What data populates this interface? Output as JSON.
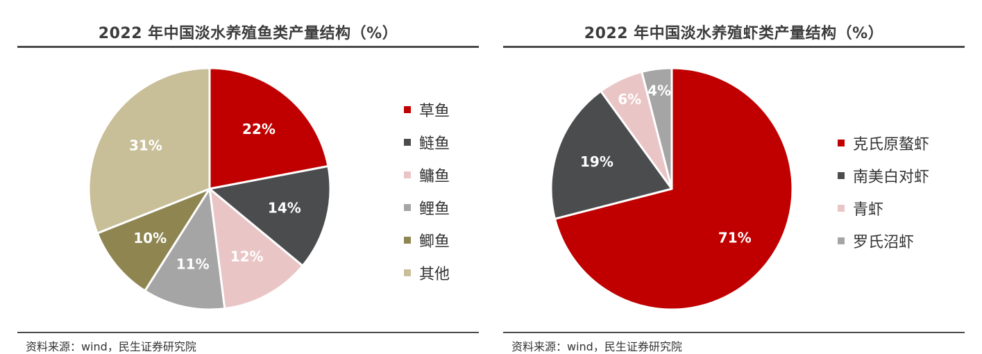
{
  "chart_data": [
    {
      "type": "pie",
      "title": "2022 年中国淡水养殖鱼类产量结构（%）",
      "source": "资料来源：wind，民生证券研究院",
      "slices": [
        {
          "label": "草鱼",
          "value": 22,
          "display": "22%",
          "color": "#c00000",
          "label_color": "#ffffff"
        },
        {
          "label": "鲢鱼",
          "value": 14,
          "display": "14%",
          "color": "#4b4c4e",
          "label_color": "#ffffff"
        },
        {
          "label": "鳙鱼",
          "value": 12,
          "display": "12%",
          "color": "#eac5c6",
          "label_color": "#ffffff"
        },
        {
          "label": "鲤鱼",
          "value": 11,
          "display": "11%",
          "color": "#a5a5a5",
          "label_color": "#ffffff"
        },
        {
          "label": "鲫鱼",
          "value": 10,
          "display": "10%",
          "color": "#8e8551",
          "label_color": "#ffffff"
        },
        {
          "label": "其他",
          "value": 31,
          "display": "31%",
          "color": "#c8bf98",
          "label_color": "#ffffff"
        }
      ],
      "legend_position": "right"
    },
    {
      "type": "pie",
      "title": "2022 年中国淡水养殖虾类产量结构（%）",
      "source": "资料来源：wind，民生证券研究院",
      "slices": [
        {
          "label": "克氏原螯虾",
          "value": 71,
          "display": "71%",
          "color": "#c00000",
          "label_color": "#ffffff"
        },
        {
          "label": "南美白对虾",
          "value": 19,
          "display": "19%",
          "color": "#4b4c4e",
          "label_color": "#ffffff"
        },
        {
          "label": "青虾",
          "value": 6,
          "display": "6%",
          "color": "#eac5c6",
          "label_color": "#ffffff"
        },
        {
          "label": "罗氏沼虾",
          "value": 4,
          "display": "4%",
          "color": "#a5a5a5",
          "label_color": "#ffffff"
        }
      ],
      "legend_position": "right"
    }
  ]
}
